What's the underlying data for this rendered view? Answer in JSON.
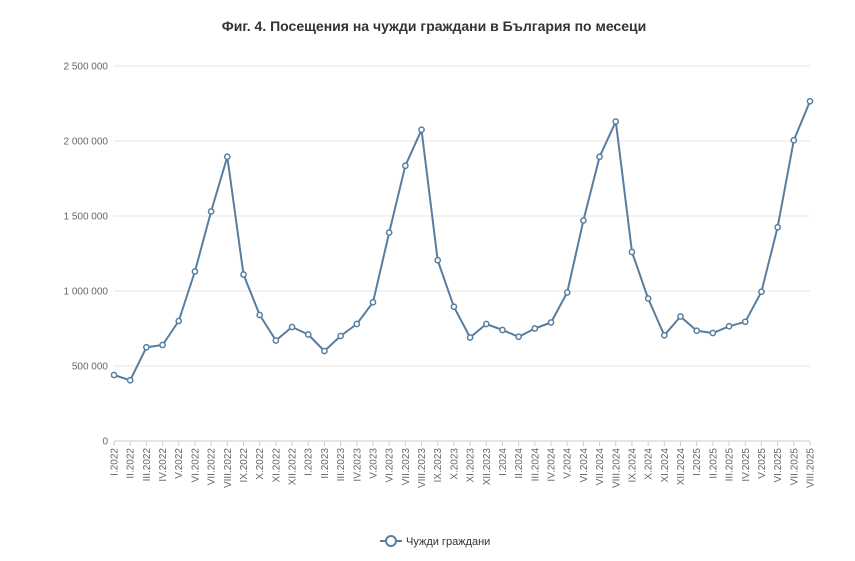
{
  "chart_data": {
    "type": "line",
    "title": "Фиг. 4. Посещения на чужди граждани в България по месеци",
    "xlabel": "",
    "ylabel": "",
    "ylim": [
      0,
      2500000
    ],
    "yticks": [
      0,
      500000,
      1000000,
      1500000,
      2000000,
      2500000
    ],
    "ytick_labels": [
      "0",
      "500 000",
      "1 000 000",
      "1 500 000",
      "2 000 000",
      "2 500 000"
    ],
    "grid": true,
    "legend_position": "bottom",
    "line_color": "#577ea0",
    "categories": [
      "I.2022",
      "II.2022",
      "III.2022",
      "IV.2022",
      "V.2022",
      "VI.2022",
      "VII.2022",
      "VIII.2022",
      "IX.2022",
      "X.2022",
      "XI.2022",
      "XII.2022",
      "I.2023",
      "II.2023",
      "III.2023",
      "IV.2023",
      "V.2023",
      "VI.2023",
      "VII.2023",
      "VIII.2023",
      "IX.2023",
      "X.2023",
      "XI.2023",
      "XII.2023",
      "I.2024",
      "II.2024",
      "III.2024",
      "IV.2024",
      "V.2024",
      "VI.2024",
      "VII.2024",
      "VIII.2024",
      "IX.2024",
      "X.2024",
      "XI.2024",
      "XII.2024",
      "I.2025",
      "II.2025",
      "III.2025",
      "IV.2025",
      "V.2025",
      "VI.2025",
      "VII.2025",
      "VIII.2025"
    ],
    "series": [
      {
        "name": "Чужди граждани",
        "values": [
          440000,
          405000,
          625000,
          640000,
          800000,
          1130000,
          1530000,
          1895000,
          1110000,
          840000,
          670000,
          760000,
          710000,
          600000,
          700000,
          780000,
          925000,
          1390000,
          1835000,
          2075000,
          1205000,
          895000,
          690000,
          780000,
          740000,
          695000,
          750000,
          790000,
          990000,
          1470000,
          1895000,
          2130000,
          1260000,
          950000,
          705000,
          830000,
          735000,
          720000,
          765000,
          795000,
          995000,
          1425000,
          2005000,
          2265000
        ]
      }
    ]
  }
}
